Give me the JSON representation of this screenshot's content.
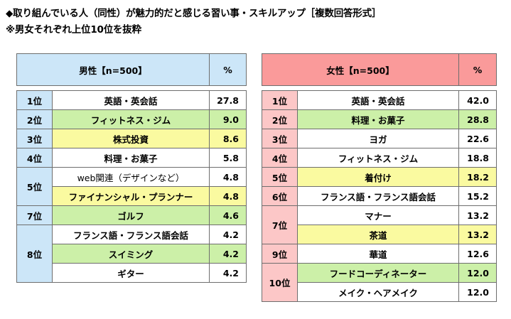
{
  "title_line1": "◆取り組んでいる人（同性）が魅力的だと感じる習い事・スキルアップ［複数回答形式］",
  "title_line2": "※男女それぞれ上位10位を抜粋",
  "colors": {
    "male_header": "#cce6f8",
    "female_header": "#fa9a9a",
    "male_rank": "#cce6f8",
    "female_rank": "#fcc7c7",
    "green": "#ccf0a8",
    "yellow": "#fafaa0",
    "white": "#ffffff"
  },
  "male": {
    "header_label": "男性【n=500】",
    "header_pct": "%",
    "rows": [
      {
        "rank": "1位",
        "item": "英語・英会話",
        "value": "27.8"
      },
      {
        "rank": "2位",
        "item": "フィットネス・ジム",
        "value": "9.0"
      },
      {
        "rank": "3位",
        "item": "株式投資",
        "value": "8.6"
      },
      {
        "rank": "4位",
        "item": "料理・お菓子",
        "value": "5.8"
      },
      {
        "rank": "5位",
        "item": "web関連（デザインなど）",
        "value": "4.8"
      },
      {
        "rank": "",
        "item": "ファイナンシャル・プランナー",
        "value": "4.8"
      },
      {
        "rank": "7位",
        "item": "ゴルフ",
        "value": "4.6"
      },
      {
        "rank": "8位",
        "item": "フランス語・フランス語会話",
        "value": "4.2"
      },
      {
        "rank": "",
        "item": "スイミング",
        "value": "4.2"
      },
      {
        "rank": "",
        "item": "ギター",
        "value": "4.2"
      }
    ]
  },
  "female": {
    "header_label": "女性【n=500】",
    "header_pct": "%",
    "rows": [
      {
        "rank": "1位",
        "item": "英語・英会話",
        "value": "42.0"
      },
      {
        "rank": "2位",
        "item": "料理・お菓子",
        "value": "28.8"
      },
      {
        "rank": "3位",
        "item": "ヨガ",
        "value": "22.6"
      },
      {
        "rank": "4位",
        "item": "フィットネス・ジム",
        "value": "18.8"
      },
      {
        "rank": "5位",
        "item": "着付け",
        "value": "18.2"
      },
      {
        "rank": "6位",
        "item": "フランス語・フランス語会話",
        "value": "15.2"
      },
      {
        "rank": "7位",
        "item": "マナー",
        "value": "13.2"
      },
      {
        "rank": "",
        "item": "茶道",
        "value": "13.2"
      },
      {
        "rank": "9位",
        "item": "華道",
        "value": "12.6"
      },
      {
        "rank": "10位",
        "item": "フードコーディネーター",
        "value": "12.0"
      },
      {
        "rank": "",
        "item": "メイク・ヘアメイク",
        "value": "12.0"
      }
    ]
  }
}
